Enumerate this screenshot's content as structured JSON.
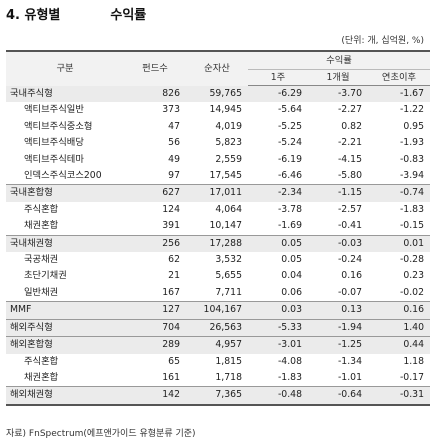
{
  "title": "4. 유형별",
  "subtitle": "수익률",
  "unit_note": "(단위: 개, 십억원, %)",
  "headers": {
    "category": "구분",
    "fund_count": "펀드수",
    "net_assets": "순자산",
    "returns": "수익률",
    "week1": "1주",
    "month1": "1개월",
    "ytd": "연초이후"
  },
  "rows": [
    {
      "name": "국내주식형",
      "count": "826",
      "assets": "59,765",
      "w1": "-6.29",
      "m1": "-3.70",
      "ytd": "-1.67",
      "level": 0,
      "sep": false
    },
    {
      "name": "액티브주식일반",
      "count": "373",
      "assets": "14,945",
      "w1": "-5.64",
      "m1": "-2.27",
      "ytd": "-1.22",
      "level": 1,
      "sep": false
    },
    {
      "name": "액티브주식중소형",
      "count": "47",
      "assets": "4,019",
      "w1": "-5.25",
      "m1": "0.82",
      "ytd": "0.95",
      "level": 1,
      "sep": false
    },
    {
      "name": "액티브주식배당",
      "count": "56",
      "assets": "5,823",
      "w1": "-5.24",
      "m1": "-2.21",
      "ytd": "-1.93",
      "level": 1,
      "sep": false
    },
    {
      "name": "액티브주식테마",
      "count": "49",
      "assets": "2,559",
      "w1": "-6.19",
      "m1": "-4.15",
      "ytd": "-0.83",
      "level": 1,
      "sep": false
    },
    {
      "name": "인덱스주식코스200",
      "count": "97",
      "assets": "17,545",
      "w1": "-6.46",
      "m1": "-5.80",
      "ytd": "-3.94",
      "level": 1,
      "sep": false
    },
    {
      "name": "국내혼합형",
      "count": "627",
      "assets": "17,011",
      "w1": "-2.34",
      "m1": "-1.15",
      "ytd": "-0.74",
      "level": 0,
      "sep": true
    },
    {
      "name": "주식혼합",
      "count": "124",
      "assets": "4,064",
      "w1": "-3.78",
      "m1": "-2.57",
      "ytd": "-1.83",
      "level": 1,
      "sep": false
    },
    {
      "name": "채권혼합",
      "count": "391",
      "assets": "10,147",
      "w1": "-1.69",
      "m1": "-0.41",
      "ytd": "-0.15",
      "level": 1,
      "sep": false
    },
    {
      "name": "국내채권형",
      "count": "256",
      "assets": "17,288",
      "w1": "0.05",
      "m1": "-0.03",
      "ytd": "0.01",
      "level": 0,
      "sep": true
    },
    {
      "name": "국공채권",
      "count": "62",
      "assets": "3,532",
      "w1": "0.05",
      "m1": "-0.24",
      "ytd": "-0.28",
      "level": 1,
      "sep": false
    },
    {
      "name": "초단기채권",
      "count": "21",
      "assets": "5,655",
      "w1": "0.04",
      "m1": "0.16",
      "ytd": "0.23",
      "level": 1,
      "sep": false
    },
    {
      "name": "일반채권",
      "count": "167",
      "assets": "7,711",
      "w1": "0.06",
      "m1": "-0.07",
      "ytd": "-0.02",
      "level": 1,
      "sep": false
    },
    {
      "name": "MMF",
      "count": "127",
      "assets": "104,167",
      "w1": "0.03",
      "m1": "0.13",
      "ytd": "0.16",
      "level": 0,
      "sep": true
    },
    {
      "name": "해외주식형",
      "count": "704",
      "assets": "26,563",
      "w1": "-5.33",
      "m1": "-1.94",
      "ytd": "1.40",
      "level": 0,
      "sep": true
    },
    {
      "name": "해외혼합형",
      "count": "289",
      "assets": "4,957",
      "w1": "-3.01",
      "m1": "-1.25",
      "ytd": "0.44",
      "level": 0,
      "sep": true
    },
    {
      "name": "주식혼합",
      "count": "65",
      "assets": "1,815",
      "w1": "-4.08",
      "m1": "-1.34",
      "ytd": "1.18",
      "level": 1,
      "sep": false
    },
    {
      "name": "채권혼합",
      "count": "161",
      "assets": "1,718",
      "w1": "-1.83",
      "m1": "-1.01",
      "ytd": "-0.17",
      "level": 1,
      "sep": false
    },
    {
      "name": "해외채권형",
      "count": "142",
      "assets": "7,365",
      "w1": "-0.48",
      "m1": "-0.64",
      "ytd": "-0.31",
      "level": 0,
      "sep": true
    }
  ],
  "source": "자료) FnSpectrum(에프앤가이드 유형분류 기준)"
}
